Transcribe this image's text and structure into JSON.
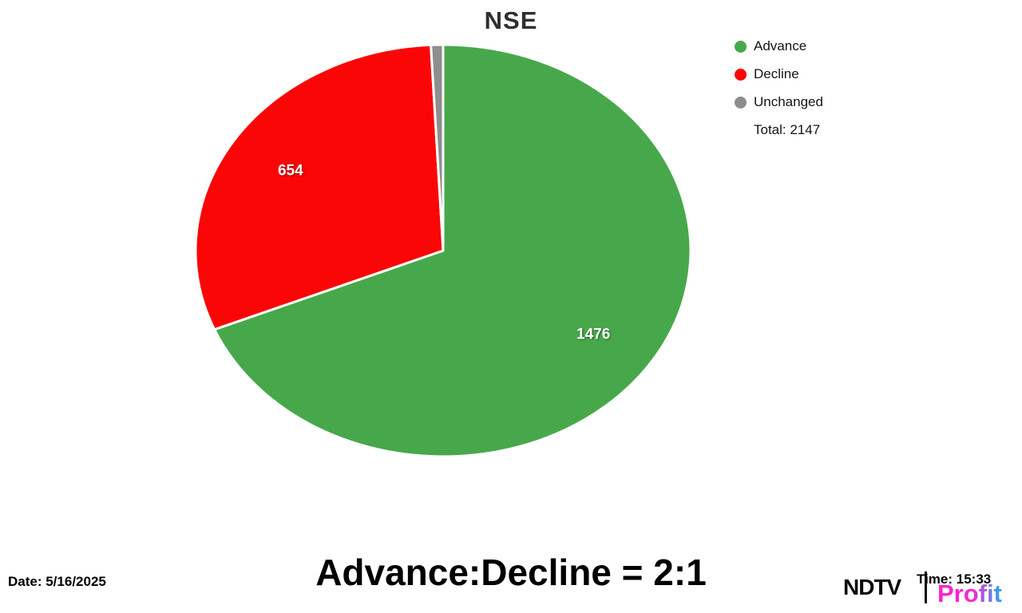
{
  "chart_data": {
    "type": "pie",
    "title": "NSE",
    "categories": [
      "Advance",
      "Decline",
      "Unchanged"
    ],
    "values": [
      1476,
      654,
      17
    ],
    "colors": [
      "#47a84b",
      "#fb0606",
      "#8e8e8e"
    ],
    "slice_labels": [
      "1476",
      "654",
      ""
    ],
    "total": 2147,
    "total_label": "Total: 2147",
    "legend_position": "top-right",
    "start_angle_deg": 0,
    "direction": "clockwise"
  },
  "footer": {
    "date": "Date: 5/16/2025",
    "headline": "Advance:Decline = 2:1",
    "time": "Time: 15:33"
  },
  "logo": {
    "ndtv": "NDTV",
    "profit": "Profit"
  }
}
